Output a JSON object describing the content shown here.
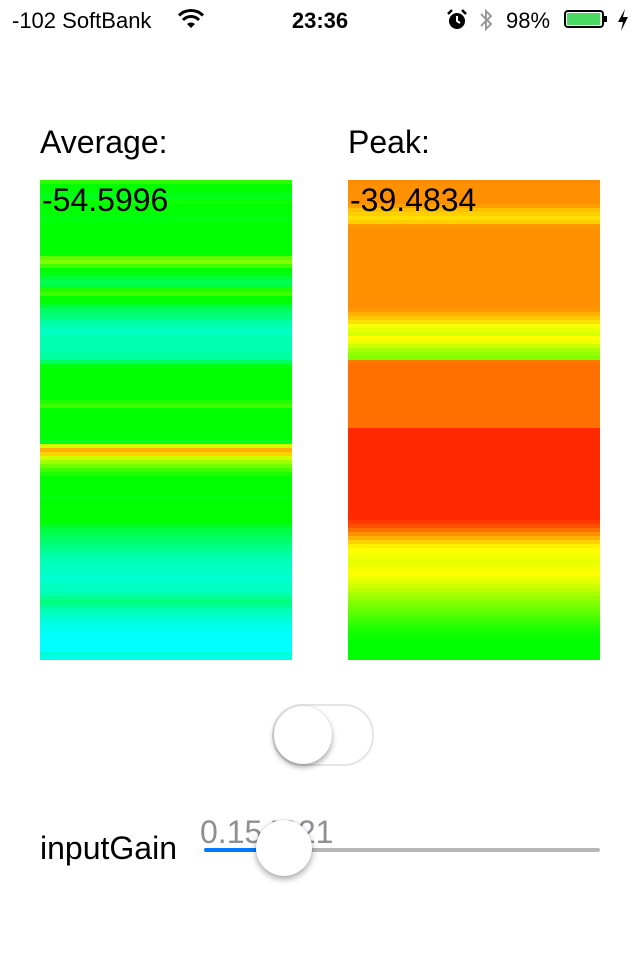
{
  "status_bar": {
    "carrier": "-102 SoftBank",
    "wifi_icon": "wifi-icon",
    "time": "23:36",
    "alarm_icon": "alarm-clock-icon",
    "bluetooth_icon": "bluetooth-icon",
    "battery_percent": "98%",
    "battery_level": 0.98,
    "battery_color": "#4cd964",
    "charging_icon": "charging-bolt-icon"
  },
  "average": {
    "label": "Average:",
    "value": "-54.5996",
    "bands": [
      "#2eff00",
      "#00ff00",
      "#00ff00",
      "#00ff10",
      "#00ff20",
      "#10ff00",
      "#00ff00",
      "#00ff00",
      "#00ff00",
      "#00ff10",
      "#00ff08",
      "#00ff00",
      "#00ff00",
      "#00ff00",
      "#00ff00",
      "#00ff00",
      "#00ff00",
      "#00ff00",
      "#00ff00",
      "#60ff00",
      "#80ff00",
      "#40ff00",
      "#00ff00",
      "#00ff10",
      "#00ff30",
      "#00ff50",
      "#00ff40",
      "#20ff00",
      "#40ff00",
      "#00ff00",
      "#00ff00",
      "#00ff30",
      "#00ff60",
      "#00ff70",
      "#00ff80",
      "#00ffa0",
      "#00ffb0",
      "#00ffc0",
      "#00ffc0",
      "#00ffb0",
      "#00ffb0",
      "#00ffb0",
      "#00ffb0",
      "#00ffa0",
      "#00ffa0",
      "#00ff60",
      "#00ff10",
      "#00ff00",
      "#00ff00",
      "#00ff00",
      "#00ff00",
      "#00ff00",
      "#00ff00",
      "#00ff00",
      "#00ff00",
      "#20ff00",
      "#40ff00",
      "#00ff00",
      "#00ff00",
      "#00ff00",
      "#00ff00",
      "#00ff00",
      "#00ff00",
      "#00ff00",
      "#00ff00",
      "#00ff20",
      "#d0ff00",
      "#ffb000",
      "#ffd000",
      "#d0ff00",
      "#a0ff00",
      "#70ff00",
      "#40ff00",
      "#20ff00",
      "#00ff00",
      "#00ff00",
      "#00ff00",
      "#00ff00",
      "#00ff00",
      "#00ff10",
      "#00ff00",
      "#00ff00",
      "#00ff00",
      "#00ff00",
      "#00ff00",
      "#00ff00",
      "#00ff20",
      "#00ff40",
      "#00ff50",
      "#00ff60",
      "#00ff70",
      "#00ff80",
      "#00ff90",
      "#00ffa0",
      "#00ffb0",
      "#00ffb8",
      "#00ffc0",
      "#00ffc0",
      "#00ffc8",
      "#00ffd0",
      "#00ffc8",
      "#00ffc0",
      "#00ffc0",
      "#00ffb0",
      "#00ff90",
      "#00ff80",
      "#00ff98",
      "#00ffb0",
      "#00ffc0",
      "#00ffd0",
      "#00ffe0",
      "#00ffe8",
      "#00fff0",
      "#00fff8",
      "#00ffff",
      "#00ffff",
      "#00ffff",
      "#00ffff",
      "#00ffd8",
      "#00ffe8"
    ]
  },
  "peak": {
    "label": "Peak:",
    "value": "-39.4834",
    "bands": [
      "#ff8c00",
      "#ff9000",
      "#ff9000",
      "#ff9000",
      "#ff9000",
      "#ff9000",
      "#ffa000",
      "#ffc000",
      "#ffd000",
      "#ffe000",
      "#ffd000",
      "#ff9800",
      "#ff9000",
      "#ff9000",
      "#ff9000",
      "#ff9000",
      "#ff9000",
      "#ff9000",
      "#ff9000",
      "#ff9000",
      "#ff9000",
      "#ff9000",
      "#ff9000",
      "#ff9000",
      "#ff9000",
      "#ff9000",
      "#ff9000",
      "#ff9000",
      "#ff9000",
      "#ff9000",
      "#ff9000",
      "#ff9000",
      "#ff9800",
      "#ffb000",
      "#ffc800",
      "#ffe000",
      "#f8ff00",
      "#e8ff00",
      "#d8ff00",
      "#ffff00",
      "#f0ff00",
      "#d0ff00",
      "#a8ff00",
      "#90ff00",
      "#80ff00",
      "#ff7800",
      "#ff7000",
      "#ff7000",
      "#ff7000",
      "#ff7000",
      "#ff7000",
      "#ff7000",
      "#ff7000",
      "#ff7000",
      "#ff7000",
      "#ff7000",
      "#ff7000",
      "#ff7000",
      "#ff7000",
      "#ff7000",
      "#ff7000",
      "#ff7000",
      "#ff2800",
      "#ff2800",
      "#ff2800",
      "#ff2800",
      "#ff2800",
      "#ff2800",
      "#ff2800",
      "#ff2800",
      "#ff2800",
      "#ff2800",
      "#ff2800",
      "#ff2800",
      "#ff2800",
      "#ff2800",
      "#ff2800",
      "#ff2800",
      "#ff2800",
      "#ff2800",
      "#ff2800",
      "#ff2800",
      "#ff2800",
      "#ff2800",
      "#ff2800",
      "#ff3800",
      "#ff5000",
      "#ff7000",
      "#ff9000",
      "#ffb000",
      "#ffd000",
      "#fff000",
      "#ffff00",
      "#f8ff00",
      "#f0ff00",
      "#e8ff00",
      "#f0ff00",
      "#f8ff00",
      "#ffff00",
      "#f0ff00",
      "#e0ff00",
      "#d0ff00",
      "#c0ff00",
      "#a8ff00",
      "#98ff00",
      "#88ff00",
      "#78ff00",
      "#68ff00",
      "#58ff00",
      "#48ff00",
      "#38ff00",
      "#28ff00",
      "#18ff00",
      "#10ff00",
      "#08ff00",
      "#00ff00",
      "#00ff00",
      "#00ff00",
      "#00ff00",
      "#00ff00"
    ]
  },
  "switch": {
    "on": false,
    "knob_icon": "toggle-knob"
  },
  "gain": {
    "label": "inputGain",
    "value_text": "0.154321",
    "value": 0.154321,
    "min_track_color": "#007aff",
    "max_track_color": "#b7b7b7"
  }
}
